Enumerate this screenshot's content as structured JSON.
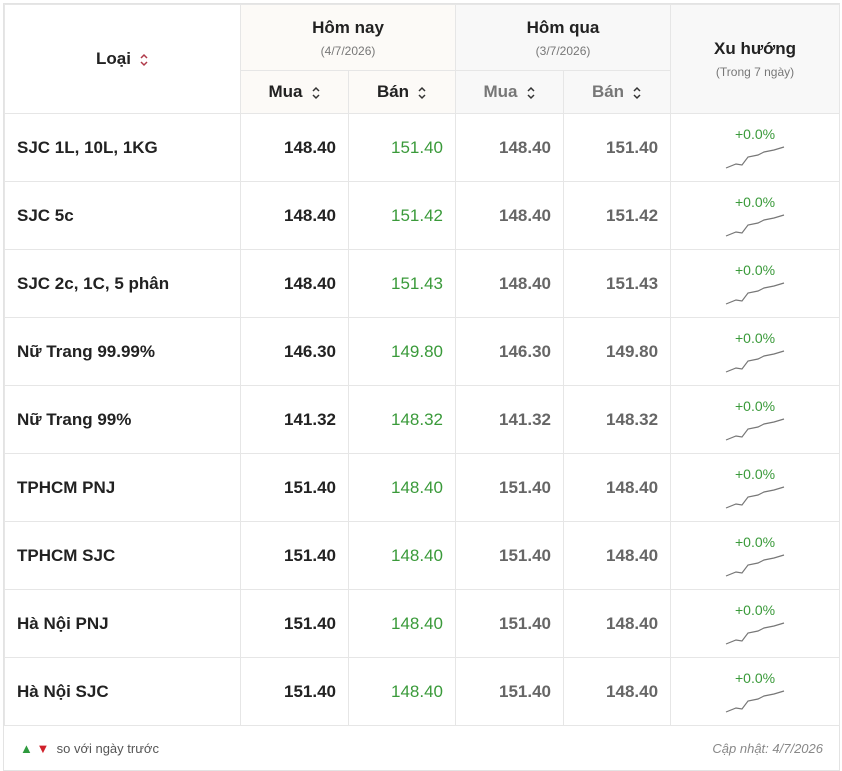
{
  "header": {
    "type_label": "Loại",
    "today": {
      "title": "Hôm nay",
      "date": "(4/7/2026)"
    },
    "yesterday": {
      "title": "Hôm qua",
      "date": "(3/7/2026)"
    },
    "buy": "Mua",
    "sell": "Bán",
    "trend": {
      "title": "Xu hướng",
      "subtitle": "(Trong 7 ngày)"
    }
  },
  "rows": [
    [
      "SJC 1L, 10L, 1KG",
      "148.40",
      "151.40",
      "148.40",
      "151.40",
      "+0.0%"
    ],
    [
      "SJC 5c",
      "148.40",
      "151.42",
      "148.40",
      "151.42",
      "+0.0%"
    ],
    [
      "SJC 2c, 1C, 5 phân",
      "148.40",
      "151.43",
      "148.40",
      "151.43",
      "+0.0%"
    ],
    [
      "Nữ Trang 99.99%",
      "146.30",
      "149.80",
      "146.30",
      "149.80",
      "+0.0%"
    ],
    [
      "Nữ Trang 99%",
      "141.32",
      "148.32",
      "141.32",
      "148.32",
      "+0.0%"
    ],
    [
      "TPHCM PNJ",
      "151.40",
      "148.40",
      "151.40",
      "148.40",
      "+0.0%"
    ],
    [
      "TPHCM SJC",
      "151.40",
      "148.40",
      "151.40",
      "148.40",
      "+0.0%"
    ],
    [
      "Hà Nội PNJ",
      "151.40",
      "148.40",
      "151.40",
      "148.40",
      "+0.0%"
    ],
    [
      "Hà Nội SJC",
      "151.40",
      "148.40",
      "151.40",
      "148.40",
      "+0.0%"
    ]
  ],
  "footer": {
    "legend": "so với ngày trước",
    "updated": "Cập nhật: 4/7/2026"
  }
}
